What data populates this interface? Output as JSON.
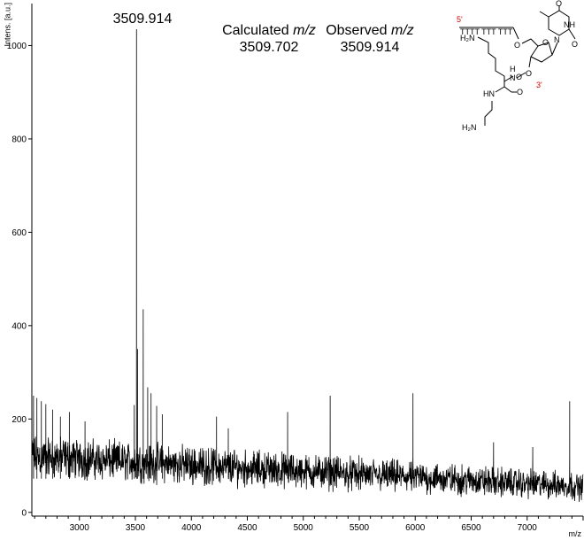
{
  "chart_data": {
    "type": "line",
    "title": "",
    "xlabel": "m/z",
    "ylabel": "Intens. [a.u.]",
    "xlim": [
      2575,
      7500
    ],
    "ylim": [
      -8,
      1090
    ],
    "x_ticks": [
      3000,
      3500,
      4000,
      4500,
      5000,
      5500,
      6000,
      6500,
      7000
    ],
    "y_ticks": [
      0,
      200,
      400,
      600,
      800,
      1000
    ],
    "grid": false,
    "legend": "none",
    "series": [
      {
        "color": "#000000",
        "baseline": {
          "start_level": 120,
          "end_level": 55,
          "noise_amplitude": 45,
          "step": 2.5
        },
        "peaks": [
          {
            "x": 2590,
            "y": 250
          },
          {
            "x": 2620,
            "y": 245
          },
          {
            "x": 2660,
            "y": 238
          },
          {
            "x": 2700,
            "y": 232
          },
          {
            "x": 2760,
            "y": 220
          },
          {
            "x": 2830,
            "y": 205
          },
          {
            "x": 2910,
            "y": 215
          },
          {
            "x": 3050,
            "y": 195
          },
          {
            "x": 3490,
            "y": 230
          },
          {
            "x": 3509.914,
            "y": 1035
          },
          {
            "x": 3519,
            "y": 350
          },
          {
            "x": 3570,
            "y": 435
          },
          {
            "x": 3610,
            "y": 268
          },
          {
            "x": 3640,
            "y": 255
          },
          {
            "x": 3690,
            "y": 228
          },
          {
            "x": 3740,
            "y": 210
          },
          {
            "x": 4225,
            "y": 205
          },
          {
            "x": 4330,
            "y": 180
          },
          {
            "x": 4860,
            "y": 215
          },
          {
            "x": 5240,
            "y": 250
          },
          {
            "x": 5980,
            "y": 255
          },
          {
            "x": 6700,
            "y": 150
          },
          {
            "x": 7050,
            "y": 140
          },
          {
            "x": 7380,
            "y": 238
          }
        ]
      }
    ],
    "annotations": {
      "peak_label": "3509.914",
      "calc_header_prefix": "Calculated ",
      "obs_header_prefix": "Observed ",
      "mz_italic": "m/z",
      "calc_value": "3509.702",
      "obs_value": "3509.914"
    }
  },
  "structure": {
    "five_prime": "5'",
    "three_prime": "3'",
    "strand": "TTTT TTT TTT",
    "amine_top": "H₂N",
    "nh_top": "H",
    "n_top": "N",
    "oxygen_ether": "O",
    "oxygen_ring": "O",
    "oxygen_carbonyl": "O",
    "oxygen_ester": "O",
    "oxygen_amide": "O",
    "oxygen_thymine_top": "O",
    "oxygen_thymine_bottom": "O",
    "nh_thymine": "NH",
    "n_thymine": "N",
    "hn_amide": "HN",
    "amine_bottom": "H₂N"
  }
}
